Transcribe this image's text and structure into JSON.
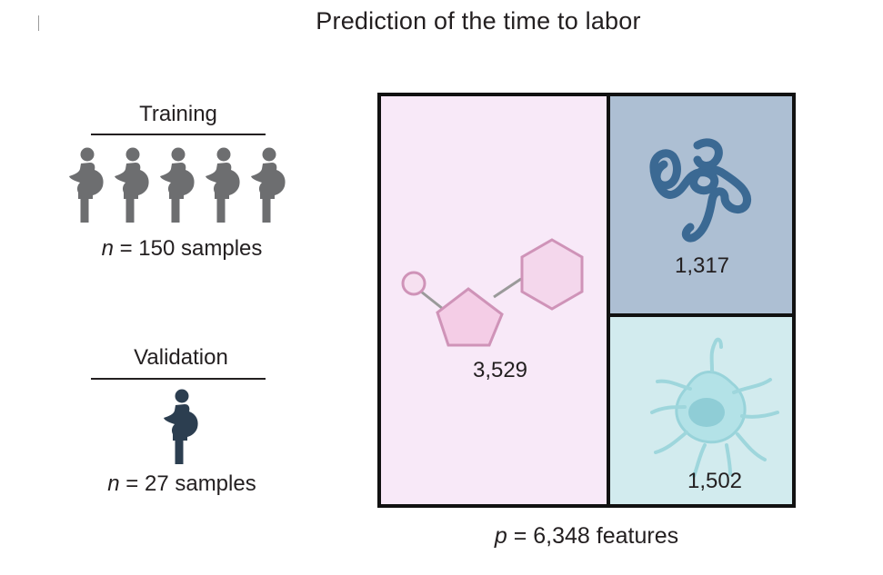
{
  "title": "Prediction of the time to labor",
  "training": {
    "label": "Training",
    "n_symbol": "n",
    "count_text": "= 150 samples",
    "icon_count": 5,
    "icon_color": "#6d6e70"
  },
  "validation": {
    "label": "Validation",
    "n_symbol": "n",
    "count_text": "= 27 samples",
    "icon_count": 1,
    "icon_color": "#2c3e50"
  },
  "features": {
    "p_symbol": "p",
    "total_text": "= 6,348 features",
    "blocks": [
      {
        "name": "metabolomics",
        "value": "3,529",
        "color": "#f8e9f8",
        "icon": "molecule-icon"
      },
      {
        "name": "proteomics",
        "value": "1,317",
        "color": "#adbfd3",
        "icon": "protein-icon"
      },
      {
        "name": "cytometry",
        "value": "1,502",
        "color": "#d2ebee",
        "icon": "immune-cell-icon"
      }
    ]
  }
}
